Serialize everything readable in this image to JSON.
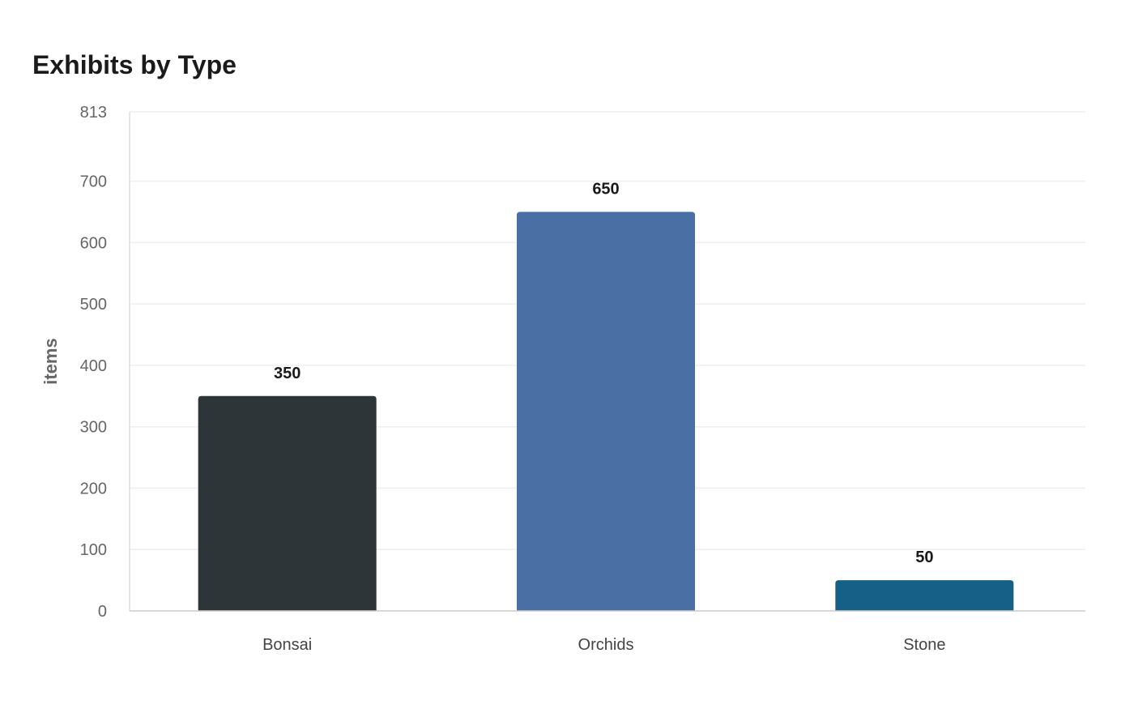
{
  "chart_data": {
    "type": "bar",
    "title": "Exhibits by Type",
    "xlabel": "",
    "ylabel": "items",
    "categories": [
      "Bonsai",
      "Orchids",
      "Stone"
    ],
    "values": [
      350,
      650,
      50
    ],
    "data_labels": [
      "350",
      "650",
      "50"
    ],
    "colors": [
      "#2e3538",
      "#4a6fa5",
      "#166088"
    ],
    "ylim": [
      0,
      813
    ],
    "yticks": [
      0,
      100,
      200,
      300,
      400,
      500,
      600,
      700,
      813
    ],
    "ytick_labels": [
      "0",
      "100",
      "200",
      "300",
      "400",
      "500",
      "600",
      "700",
      "813"
    ],
    "grid": true,
    "legend": "none"
  },
  "colors": {
    "axis": "#cccccc",
    "grid": "#eeeeee"
  }
}
